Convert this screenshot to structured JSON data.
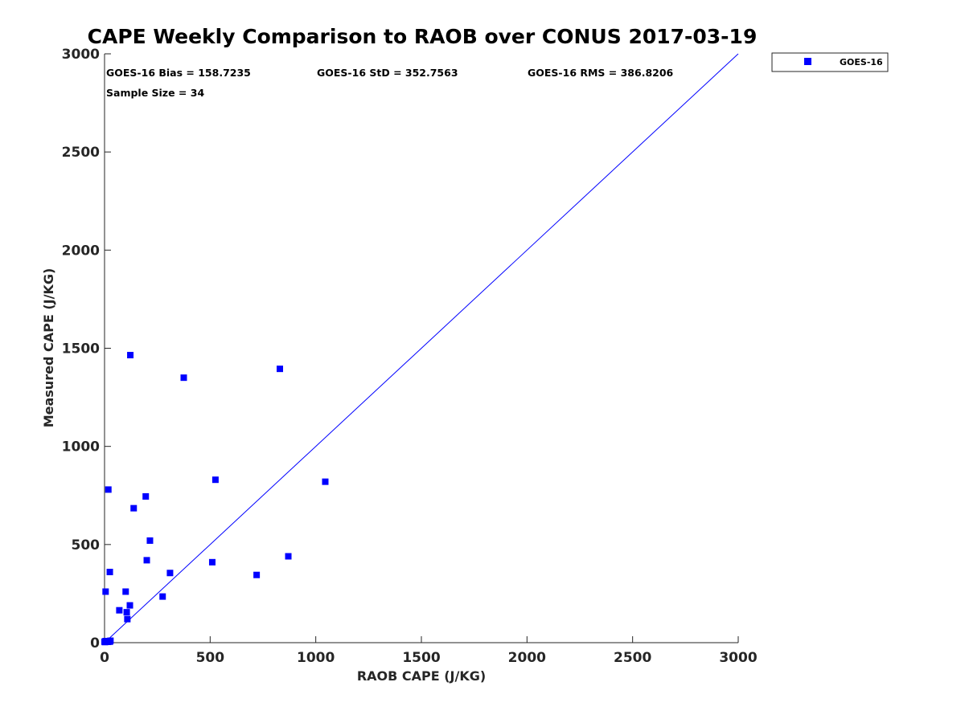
{
  "chart_data": {
    "type": "scatter",
    "title": "CAPE Weekly Comparison to RAOB over CONUS 2017-03-19",
    "xlabel": "RAOB CAPE (J/KG)",
    "ylabel": "Measured CAPE (J/KG)",
    "xlim": [
      0,
      3000
    ],
    "ylim": [
      0,
      3000
    ],
    "xticks": [
      "0",
      "500",
      "1000",
      "1500",
      "2000",
      "2500",
      "3000"
    ],
    "yticks": [
      "0",
      "500",
      "1000",
      "1500",
      "2000",
      "2500",
      "3000"
    ],
    "grid": false,
    "legend_position": "top-right outside",
    "series": [
      {
        "name": "GOES-16",
        "color": "#0000ff",
        "marker": "square",
        "points": [
          [
            0,
            5
          ],
          [
            2,
            3
          ],
          [
            5,
            8
          ],
          [
            10,
            6
          ],
          [
            15,
            4
          ],
          [
            20,
            7
          ],
          [
            25,
            5
          ],
          [
            28,
            10
          ],
          [
            5,
            260
          ],
          [
            18,
            780
          ],
          [
            25,
            360
          ],
          [
            70,
            165
          ],
          [
            100,
            260
          ],
          [
            105,
            155
          ],
          [
            108,
            120
          ],
          [
            120,
            190
          ],
          [
            122,
            1465
          ],
          [
            138,
            685
          ],
          [
            195,
            745
          ],
          [
            200,
            420
          ],
          [
            215,
            520
          ],
          [
            275,
            235
          ],
          [
            310,
            355
          ],
          [
            375,
            1350
          ],
          [
            510,
            410
          ],
          [
            525,
            830
          ],
          [
            720,
            345
          ],
          [
            830,
            1395
          ],
          [
            870,
            440
          ],
          [
            1045,
            820
          ]
        ]
      }
    ],
    "reference_line": {
      "from": [
        0,
        0
      ],
      "to": [
        3000,
        3000
      ],
      "color": "#0000ff"
    },
    "annotations": {
      "bias": "GOES-16 Bias = 158.7235",
      "std": "GOES-16 StD = 352.7563",
      "rms": "GOES-16 RMS = 386.8206",
      "sample": "Sample Size = 34"
    }
  }
}
